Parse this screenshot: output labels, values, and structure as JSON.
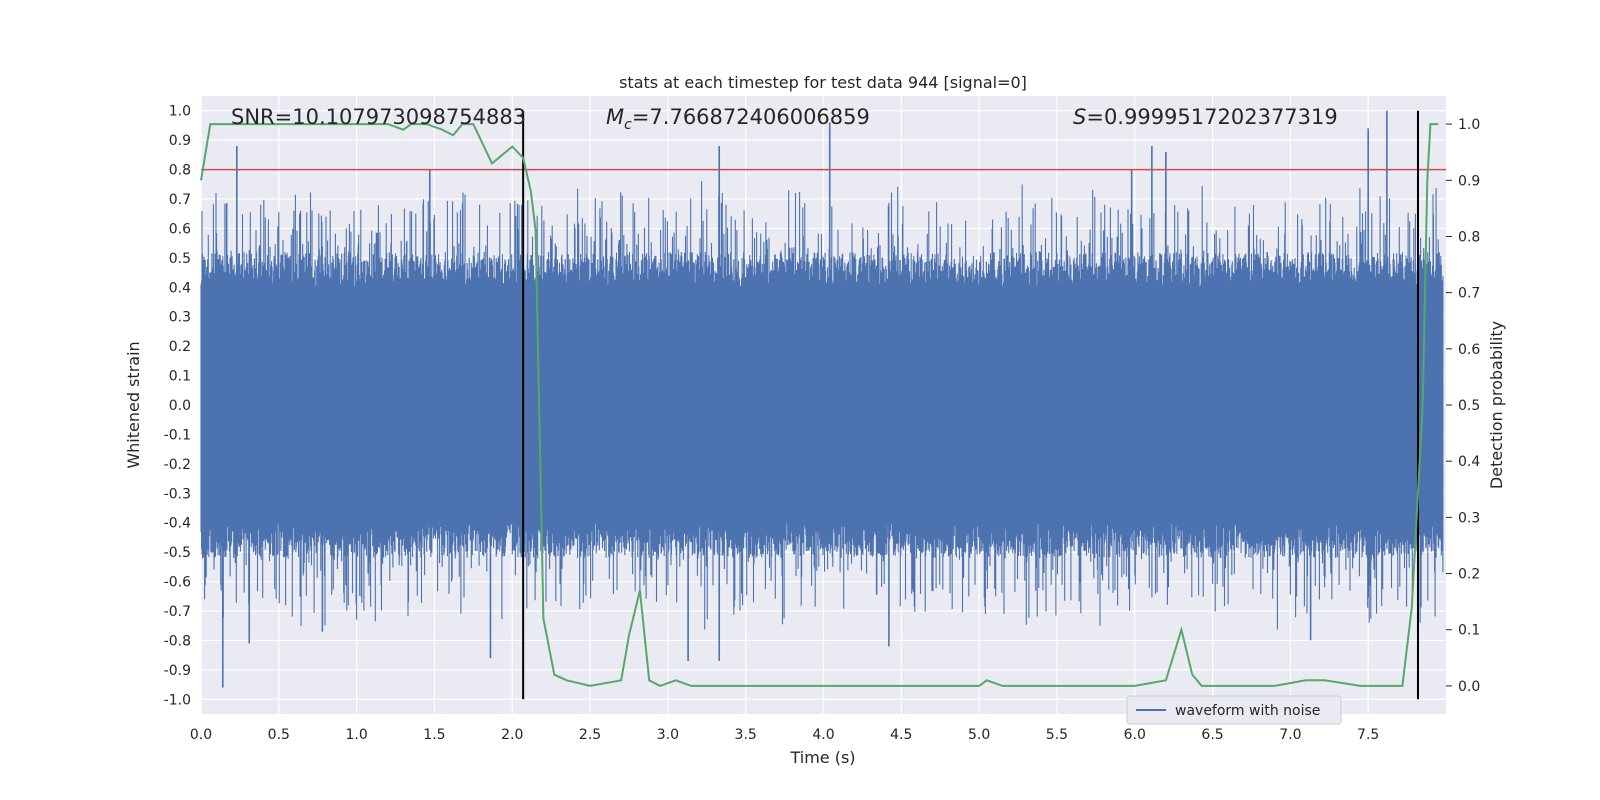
{
  "chart_data": {
    "type": "line",
    "title": "stats at each timestep for test data 944 [signal=0]",
    "xlabel": "Time (s)",
    "ylabel": "Whitened strain",
    "y2label": "Detection probability",
    "xlim": [
      0.0,
      8.0
    ],
    "ylim": [
      -1.05,
      1.05
    ],
    "y2lim": [
      -0.05,
      1.05
    ],
    "x_ticks": [
      0.0,
      0.5,
      1.0,
      1.5,
      2.0,
      2.5,
      3.0,
      3.5,
      4.0,
      4.5,
      5.0,
      5.5,
      6.0,
      6.5,
      7.0,
      7.5
    ],
    "x_tick_labels": [
      "0.0",
      "0.5",
      "1.0",
      "1.5",
      "2.0",
      "2.5",
      "3.0",
      "3.5",
      "4.0",
      "4.5",
      "5.0",
      "5.5",
      "6.0",
      "6.5",
      "7.0",
      "7.5"
    ],
    "y_ticks": [
      1.0,
      0.9,
      0.8,
      0.7,
      0.6,
      0.5,
      0.4,
      0.3,
      0.2,
      0.1,
      0.0,
      -0.1,
      -0.2,
      -0.3,
      -0.4,
      -0.5,
      -0.6,
      -0.7,
      -0.8,
      -0.9,
      -1.0
    ],
    "y_tick_labels": [
      "1.0",
      "0.9",
      "0.8",
      "0.7",
      "0.6",
      "0.5",
      "0.4",
      "0.3",
      "0.2",
      "0.1",
      "0.0",
      "-0.1",
      "-0.2",
      "-0.3",
      "-0.4",
      "-0.5",
      "-0.6",
      "-0.7",
      "-0.8",
      "-0.9",
      "-1.0"
    ],
    "y2_ticks": [
      1.0,
      0.9,
      0.8,
      0.7,
      0.6,
      0.5,
      0.4,
      0.3,
      0.2,
      0.1,
      0.0
    ],
    "y2_tick_labels": [
      "1.0",
      "0.9",
      "0.8",
      "0.7",
      "0.6",
      "0.5",
      "0.4",
      "0.3",
      "0.2",
      "0.1",
      "0.0"
    ],
    "annotations": {
      "snr": "SNR=10.107973098754883",
      "mc_symbol": "M",
      "mc_subscript": "c",
      "mc_value": "=7.766872406006859",
      "s_symbol": "S",
      "s_value": "=0.9999517202377319"
    },
    "threshold": {
      "y": 0.8,
      "color": "#c44e52"
    },
    "vlines": {
      "x": [
        2.07,
        7.82
      ],
      "y_range": [
        -1.0,
        1.0
      ],
      "color": "#000000"
    },
    "legend": {
      "label": "waveform with noise",
      "position": "lower-right"
    },
    "waveform": {
      "name": "waveform with noise",
      "color": "#4c72b0",
      "description_bands": {
        "core_amplitude": 0.4,
        "spike_max_pos": 1.0,
        "spike_min_neg": -0.96
      },
      "peaks_positive": [
        {
          "x": 0.23,
          "y": 0.88
        },
        {
          "x": 3.33,
          "y": 0.88
        },
        {
          "x": 4.04,
          "y": 0.96
        },
        {
          "x": 6.11,
          "y": 0.88
        },
        {
          "x": 6.2,
          "y": 0.86
        },
        {
          "x": 7.5,
          "y": 0.94
        },
        {
          "x": 7.62,
          "y": 1.0
        },
        {
          "x": 1.47,
          "y": 0.8
        },
        {
          "x": 5.98,
          "y": 0.8
        }
      ],
      "peaks_negative": [
        {
          "x": 0.14,
          "y": -0.96
        },
        {
          "x": 1.86,
          "y": -0.86
        },
        {
          "x": 3.13,
          "y": -0.87
        },
        {
          "x": 3.33,
          "y": -0.87
        },
        {
          "x": 4.42,
          "y": -0.82
        },
        {
          "x": 7.13,
          "y": -0.8
        },
        {
          "x": 0.78,
          "y": -0.77
        },
        {
          "x": 0.31,
          "y": -0.81
        }
      ]
    },
    "probability": {
      "name": "Detection probability",
      "color": "#55a868",
      "x": [
        0.0,
        0.06,
        0.15,
        0.3,
        0.5,
        0.8,
        1.1,
        1.2,
        1.3,
        1.35,
        1.45,
        1.55,
        1.62,
        1.68,
        1.75,
        1.87,
        2.0,
        2.07,
        2.12,
        2.15,
        2.2,
        2.27,
        2.35,
        2.5,
        2.7,
        2.75,
        2.82,
        2.88,
        2.95,
        3.05,
        3.15,
        3.4,
        3.9,
        4.5,
        5.0,
        5.05,
        5.15,
        6.0,
        6.2,
        6.3,
        6.37,
        6.43,
        6.6,
        6.9,
        7.1,
        7.15,
        7.22,
        7.45,
        7.55,
        7.72,
        7.78,
        7.85,
        7.88,
        7.9,
        7.95
      ],
      "y": [
        0.9,
        1.0,
        1.0,
        1.0,
        1.0,
        1.0,
        1.0,
        1.0,
        0.99,
        1.0,
        1.0,
        0.99,
        0.98,
        1.0,
        1.0,
        0.93,
        0.96,
        0.94,
        0.88,
        0.81,
        0.12,
        0.02,
        0.01,
        0.0,
        0.01,
        0.09,
        0.17,
        0.01,
        0.0,
        0.01,
        0.0,
        0.0,
        0.0,
        0.0,
        0.0,
        0.01,
        0.0,
        0.0,
        0.01,
        0.1,
        0.02,
        0.0,
        0.0,
        0.0,
        0.01,
        0.01,
        0.01,
        0.0,
        0.0,
        0.0,
        0.14,
        0.5,
        0.9,
        1.0,
        1.0
      ]
    }
  }
}
